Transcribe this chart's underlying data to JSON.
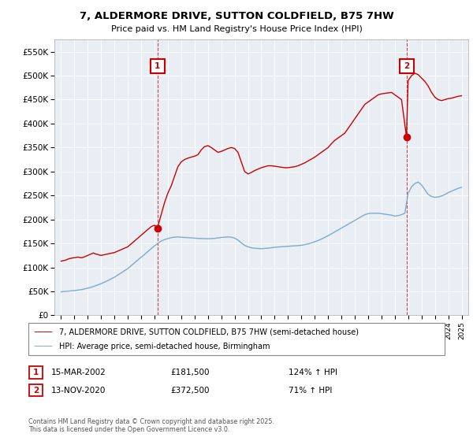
{
  "title": "7, ALDERMORE DRIVE, SUTTON COLDFIELD, B75 7HW",
  "subtitle": "Price paid vs. HM Land Registry's House Price Index (HPI)",
  "legend_line1": "7, ALDERMORE DRIVE, SUTTON COLDFIELD, B75 7HW (semi-detached house)",
  "legend_line2": "HPI: Average price, semi-detached house, Birmingham",
  "footnote": "Contains HM Land Registry data © Crown copyright and database right 2025.\nThis data is licensed under the Open Government Licence v3.0.",
  "transaction1_label": "1",
  "transaction1_date": "15-MAR-2002",
  "transaction1_price": "£181,500",
  "transaction1_hpi": "124% ↑ HPI",
  "transaction2_label": "2",
  "transaction2_date": "13-NOV-2020",
  "transaction2_price": "£372,500",
  "transaction2_hpi": "71% ↑ HPI",
  "transaction1_x": 2002.21,
  "transaction1_y": 181500,
  "transaction2_x": 2020.87,
  "transaction2_y": 372500,
  "vline1_x": 2002.21,
  "vline2_x": 2020.87,
  "red_color": "#cc0000",
  "blue_color": "#7faacc",
  "vline_color": "#cc0000",
  "marker_box_color": "#cc0000",
  "bg_color": "#e8eef4",
  "grid_color": "#ffffff",
  "ylim": [
    0,
    575000
  ],
  "yticks": [
    0,
    50000,
    100000,
    150000,
    200000,
    250000,
    300000,
    350000,
    400000,
    450000,
    500000,
    550000
  ],
  "xlim": [
    1994.5,
    2025.5
  ],
  "xticks": [
    1995,
    1996,
    1997,
    1998,
    1999,
    2000,
    2001,
    2002,
    2003,
    2004,
    2005,
    2006,
    2007,
    2008,
    2009,
    2010,
    2011,
    2012,
    2013,
    2014,
    2015,
    2016,
    2017,
    2018,
    2019,
    2020,
    2021,
    2022,
    2023,
    2024,
    2025
  ],
  "red_x": [
    1995.0,
    1995.08,
    1995.17,
    1995.25,
    1995.33,
    1995.42,
    1995.5,
    1995.58,
    1995.67,
    1995.75,
    1995.83,
    1995.92,
    1996.0,
    1996.08,
    1996.17,
    1996.25,
    1996.33,
    1996.42,
    1996.5,
    1996.58,
    1996.67,
    1996.75,
    1996.83,
    1996.92,
    1997.0,
    1997.08,
    1997.17,
    1997.25,
    1997.33,
    1997.42,
    1997.5,
    1997.58,
    1997.67,
    1997.75,
    1997.83,
    1997.92,
    1998.0,
    1998.08,
    1998.17,
    1998.25,
    1998.33,
    1998.42,
    1998.5,
    1998.58,
    1998.67,
    1998.75,
    1998.83,
    1998.92,
    1999.0,
    1999.08,
    1999.17,
    1999.25,
    1999.33,
    1999.42,
    1999.5,
    1999.58,
    1999.67,
    1999.75,
    1999.83,
    1999.92,
    2000.0,
    2000.08,
    2000.17,
    2000.25,
    2000.33,
    2000.42,
    2000.5,
    2000.58,
    2000.67,
    2000.75,
    2000.83,
    2000.92,
    2001.0,
    2001.08,
    2001.17,
    2001.25,
    2001.33,
    2001.42,
    2001.5,
    2001.58,
    2001.67,
    2001.75,
    2001.83,
    2001.92,
    2002.0,
    2002.21,
    2002.5,
    2002.75,
    2003.0,
    2003.25,
    2003.5,
    2003.75,
    2004.0,
    2004.25,
    2004.5,
    2004.75,
    2005.0,
    2005.25,
    2005.5,
    2005.75,
    2006.0,
    2006.25,
    2006.5,
    2006.75,
    2007.0,
    2007.25,
    2007.5,
    2007.75,
    2008.0,
    2008.25,
    2008.5,
    2008.75,
    2009.0,
    2009.25,
    2009.5,
    2009.75,
    2010.0,
    2010.25,
    2010.5,
    2010.75,
    2011.0,
    2011.25,
    2011.5,
    2011.75,
    2012.0,
    2012.25,
    2012.5,
    2012.75,
    2013.0,
    2013.25,
    2013.5,
    2013.75,
    2014.0,
    2014.25,
    2014.5,
    2014.75,
    2015.0,
    2015.25,
    2015.5,
    2015.75,
    2016.0,
    2016.25,
    2016.5,
    2016.75,
    2017.0,
    2017.25,
    2017.5,
    2017.75,
    2018.0,
    2018.25,
    2018.5,
    2018.75,
    2019.0,
    2019.25,
    2019.5,
    2019.75,
    2020.0,
    2020.25,
    2020.5,
    2020.87,
    2021.0,
    2021.25,
    2021.5,
    2021.75,
    2022.0,
    2022.25,
    2022.5,
    2022.75,
    2023.0,
    2023.25,
    2023.5,
    2023.75,
    2024.0,
    2024.25,
    2024.5,
    2024.75,
    2025.0
  ],
  "red_y": [
    113000,
    113500,
    114000,
    114500,
    115000,
    116000,
    117000,
    118000,
    118500,
    119000,
    119500,
    120000,
    120000,
    120500,
    121000,
    121500,
    121000,
    120500,
    120000,
    120500,
    121000,
    122000,
    123000,
    124000,
    125000,
    126000,
    127000,
    128000,
    129000,
    130000,
    129000,
    128000,
    127500,
    127000,
    126000,
    125500,
    125000,
    125500,
    126000,
    126500,
    127000,
    127500,
    128000,
    128500,
    129000,
    129500,
    130000,
    130500,
    131000,
    132000,
    133000,
    134000,
    135000,
    136000,
    137000,
    138000,
    139000,
    140000,
    141000,
    142000,
    143000,
    145000,
    147000,
    149000,
    151000,
    153000,
    155000,
    157000,
    159000,
    161000,
    163000,
    165000,
    167000,
    169000,
    171000,
    173000,
    175000,
    177000,
    179000,
    181000,
    183000,
    185000,
    186000,
    187000,
    188000,
    181500,
    210000,
    235000,
    255000,
    270000,
    290000,
    310000,
    320000,
    325000,
    328000,
    330000,
    332000,
    335000,
    345000,
    352000,
    354000,
    350000,
    345000,
    340000,
    342000,
    345000,
    348000,
    350000,
    348000,
    340000,
    320000,
    300000,
    295000,
    298000,
    302000,
    305000,
    308000,
    310000,
    312000,
    312000,
    311000,
    310000,
    309000,
    308000,
    308000,
    309000,
    310000,
    312000,
    315000,
    318000,
    322000,
    326000,
    330000,
    335000,
    340000,
    345000,
    350000,
    358000,
    365000,
    370000,
    375000,
    380000,
    390000,
    400000,
    410000,
    420000,
    430000,
    440000,
    445000,
    450000,
    455000,
    460000,
    462000,
    463000,
    464000,
    465000,
    460000,
    455000,
    450000,
    372500,
    490000,
    500000,
    505000,
    502000,
    495000,
    488000,
    478000,
    465000,
    455000,
    450000,
    448000,
    450000,
    452000,
    453000,
    455000,
    457000,
    458000
  ],
  "blue_x": [
    1995.0,
    1995.08,
    1995.17,
    1995.25,
    1995.33,
    1995.42,
    1995.5,
    1995.58,
    1995.67,
    1995.75,
    1995.83,
    1995.92,
    1996.0,
    1996.08,
    1996.17,
    1996.25,
    1996.33,
    1996.42,
    1996.5,
    1996.58,
    1996.67,
    1996.75,
    1996.83,
    1996.92,
    1997.0,
    1997.08,
    1997.17,
    1997.25,
    1997.33,
    1997.42,
    1997.5,
    1997.58,
    1997.67,
    1997.75,
    1997.83,
    1997.92,
    1998.0,
    1998.08,
    1998.17,
    1998.25,
    1998.33,
    1998.42,
    1998.5,
    1998.58,
    1998.67,
    1998.75,
    1998.83,
    1998.92,
    1999.0,
    1999.08,
    1999.17,
    1999.25,
    1999.33,
    1999.42,
    1999.5,
    1999.58,
    1999.67,
    1999.75,
    1999.83,
    1999.92,
    2000.0,
    2000.08,
    2000.17,
    2000.25,
    2000.33,
    2000.42,
    2000.5,
    2000.58,
    2000.67,
    2000.75,
    2000.83,
    2000.92,
    2001.0,
    2001.08,
    2001.17,
    2001.25,
    2001.33,
    2001.42,
    2001.5,
    2001.58,
    2001.67,
    2001.75,
    2001.83,
    2001.92,
    2002.0,
    2002.25,
    2002.5,
    2002.75,
    2003.0,
    2003.25,
    2003.5,
    2003.75,
    2004.0,
    2004.25,
    2004.5,
    2004.75,
    2005.0,
    2005.25,
    2005.5,
    2005.75,
    2006.0,
    2006.25,
    2006.5,
    2006.75,
    2007.0,
    2007.25,
    2007.5,
    2007.75,
    2008.0,
    2008.25,
    2008.5,
    2008.75,
    2009.0,
    2009.25,
    2009.5,
    2009.75,
    2010.0,
    2010.25,
    2010.5,
    2010.75,
    2011.0,
    2011.25,
    2011.5,
    2011.75,
    2012.0,
    2012.25,
    2012.5,
    2012.75,
    2013.0,
    2013.25,
    2013.5,
    2013.75,
    2014.0,
    2014.25,
    2014.5,
    2014.75,
    2015.0,
    2015.25,
    2015.5,
    2015.75,
    2016.0,
    2016.25,
    2016.5,
    2016.75,
    2017.0,
    2017.25,
    2017.5,
    2017.75,
    2018.0,
    2018.25,
    2018.5,
    2018.75,
    2019.0,
    2019.25,
    2019.5,
    2019.75,
    2020.0,
    2020.25,
    2020.5,
    2020.75,
    2021.0,
    2021.25,
    2021.5,
    2021.75,
    2022.0,
    2022.25,
    2022.5,
    2022.75,
    2023.0,
    2023.25,
    2023.5,
    2023.75,
    2024.0,
    2024.25,
    2024.5,
    2024.75,
    2025.0
  ],
  "blue_y": [
    49000,
    49200,
    49400,
    49600,
    49800,
    50000,
    50200,
    50400,
    50600,
    50800,
    51000,
    51300,
    51600,
    51900,
    52200,
    52500,
    52800,
    53200,
    53600,
    54000,
    54500,
    55000,
    55500,
    56000,
    56500,
    57200,
    57900,
    58600,
    59300,
    60100,
    60900,
    61700,
    62500,
    63400,
    64300,
    65200,
    66000,
    67000,
    68000,
    69000,
    70000,
    71200,
    72400,
    73600,
    74800,
    76000,
    77200,
    78400,
    79500,
    81000,
    82500,
    84000,
    85500,
    87000,
    88500,
    90000,
    91500,
    93000,
    94500,
    96000,
    97500,
    99500,
    101500,
    103500,
    105500,
    107500,
    109500,
    111500,
    113500,
    115500,
    117500,
    119500,
    121000,
    123000,
    125000,
    127000,
    129000,
    131000,
    133000,
    135000,
    137000,
    139000,
    141000,
    143000,
    145000,
    150000,
    155000,
    158000,
    160000,
    162000,
    163000,
    163500,
    163000,
    162500,
    162000,
    161500,
    161000,
    160500,
    160200,
    160000,
    159800,
    160000,
    160500,
    161500,
    162500,
    163000,
    163500,
    163000,
    161000,
    157000,
    151000,
    146000,
    143000,
    141000,
    140000,
    139500,
    139000,
    139500,
    140000,
    141000,
    142000,
    142500,
    143000,
    143500,
    144000,
    144500,
    145000,
    145500,
    146000,
    147500,
    149000,
    151000,
    153500,
    156000,
    159000,
    162500,
    166000,
    170000,
    174000,
    178000,
    182000,
    186000,
    190000,
    194000,
    198000,
    202000,
    206000,
    210000,
    212000,
    213000,
    213000,
    213000,
    212000,
    211000,
    210000,
    209000,
    207000,
    208000,
    210000,
    213000,
    255000,
    268000,
    275000,
    278000,
    272000,
    262000,
    252000,
    248000,
    246000,
    247000,
    249000,
    252000,
    256000,
    259000,
    262000,
    265000,
    267000
  ]
}
